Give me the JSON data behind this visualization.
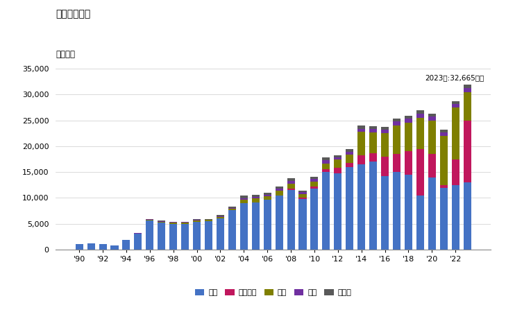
{
  "title": "輸入量の推移",
  "ylabel": "単位トン",
  "annotation": "2023年:32,665トン",
  "ylim": [
    0,
    35000
  ],
  "yticks": [
    0,
    5000,
    10000,
    15000,
    20000,
    25000,
    30000,
    35000
  ],
  "years": [
    1990,
    1991,
    1992,
    1993,
    1994,
    1995,
    1996,
    1997,
    1998,
    1999,
    2000,
    2001,
    2002,
    2003,
    2004,
    2005,
    2006,
    2007,
    2008,
    2009,
    2010,
    2011,
    2012,
    2013,
    2014,
    2015,
    2016,
    2017,
    2018,
    2019,
    2020,
    2021,
    2022,
    2023
  ],
  "korea": [
    1050,
    1200,
    1050,
    780,
    1850,
    3100,
    5600,
    5200,
    5000,
    5000,
    5400,
    5500,
    6100,
    7600,
    9000,
    9100,
    9600,
    10500,
    11500,
    9800,
    11800,
    15000,
    14800,
    16000,
    16500,
    17000,
    14200,
    15000,
    14500,
    10500,
    14000,
    12000,
    12500,
    13000
  ],
  "vietnam": [
    0,
    0,
    0,
    0,
    0,
    0,
    0,
    0,
    0,
    0,
    0,
    0,
    0,
    0,
    0,
    0,
    0,
    0,
    300,
    200,
    400,
    600,
    1000,
    800,
    1800,
    1600,
    3800,
    3500,
    4500,
    9000,
    4500,
    500,
    5000,
    12000
  ],
  "china": [
    0,
    0,
    0,
    0,
    0,
    50,
    150,
    200,
    200,
    200,
    200,
    200,
    200,
    300,
    600,
    800,
    700,
    900,
    1000,
    700,
    900,
    1000,
    1600,
    1600,
    4500,
    4000,
    4500,
    5500,
    5500,
    6000,
    6500,
    9500,
    10000,
    5500
  ],
  "taiwan": [
    0,
    0,
    0,
    0,
    0,
    50,
    100,
    100,
    100,
    100,
    100,
    100,
    200,
    200,
    300,
    300,
    350,
    400,
    500,
    400,
    550,
    700,
    450,
    550,
    600,
    700,
    750,
    800,
    800,
    800,
    700,
    700,
    700,
    800
  ],
  "other": [
    50,
    50,
    50,
    50,
    50,
    50,
    100,
    100,
    100,
    100,
    150,
    100,
    200,
    250,
    500,
    350,
    300,
    350,
    450,
    350,
    450,
    550,
    450,
    500,
    600,
    600,
    450,
    600,
    600,
    600,
    550,
    550,
    550,
    665
  ],
  "colors": {
    "korea": "#4472C4",
    "vietnam": "#C0175D",
    "china": "#7F7F00",
    "taiwan": "#7030A0",
    "other": "#595959"
  },
  "legend_labels": [
    "韓国",
    "ベトナム",
    "中国",
    "台湾",
    "その他"
  ],
  "bar_width": 0.65,
  "background_color": "#FFFFFF",
  "grid_color": "#CCCCCC",
  "border_color": "#A09060"
}
